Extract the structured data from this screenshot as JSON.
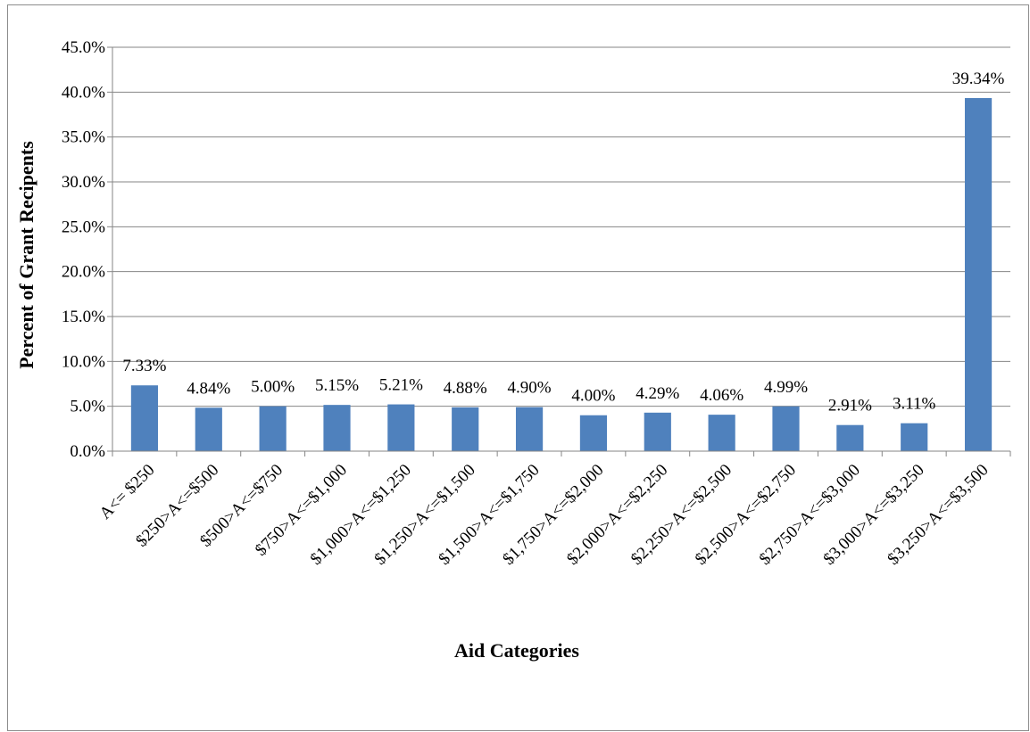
{
  "chart_data": {
    "type": "bar",
    "title": "",
    "xlabel": "Aid Categories",
    "ylabel": "Percent of Grant Recipents",
    "ylim": [
      0,
      45
    ],
    "ytick_step": 5,
    "ytick_labels": [
      "0.0%",
      "5.0%",
      "10.0%",
      "15.0%",
      "20.0%",
      "25.0%",
      "30.0%",
      "35.0%",
      "40.0%",
      "45.0%"
    ],
    "grid": true,
    "legend": "none",
    "bar_color": "#4f81bd",
    "categories": [
      "A<= $250",
      "$250>A<=$500",
      "$500>A<=$750",
      "$750>A<=$1,000",
      "$1,000>A<=$1,250",
      "$1,250>A<=$1,500",
      "$1,500>A<=$1,750",
      "$1,750>A<=$2,000",
      "$2,000>A<=$2,250",
      "$2,250>A<=$2,500",
      "$2,500>A<=$2,750",
      "$2,750>A<=$3,000",
      "$3,000>A<=$3,250",
      "$3,250>A<=$3,500"
    ],
    "values": [
      7.33,
      4.84,
      5.0,
      5.15,
      5.21,
      4.88,
      4.9,
      4.0,
      4.29,
      4.06,
      4.99,
      2.91,
      3.11,
      39.34
    ],
    "data_labels": [
      "7.33%",
      "4.84%",
      "5.00%",
      "5.15%",
      "5.21%",
      "4.88%",
      "4.90%",
      "4.00%",
      "4.29%",
      "4.06%",
      "4.99%",
      "2.91%",
      "3.11%",
      "39.34%"
    ]
  }
}
